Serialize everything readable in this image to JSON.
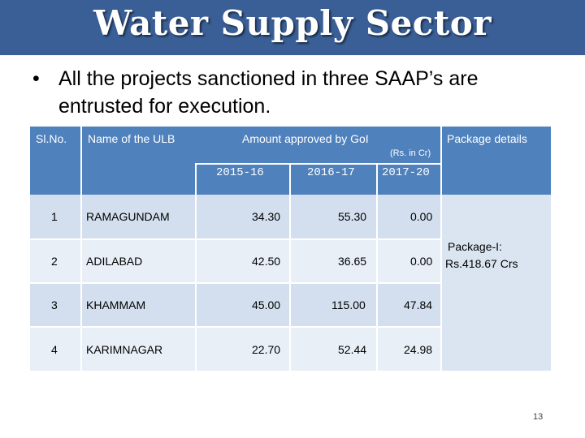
{
  "slide": {
    "title": "Water Supply Sector",
    "bullet": "All the projects sanctioned in three SAAP’s are entrusted for execution.",
    "page_number": "13"
  },
  "table": {
    "headers": {
      "sl_no": "Sl.No.",
      "name": "Name of the ULB",
      "amount": "Amount approved by GoI",
      "units": "(Rs. in Cr)",
      "package": "Package details"
    },
    "years": [
      "2015-16",
      "2016-17",
      "2017-20"
    ],
    "rows": [
      {
        "sl": "1",
        "name": "RAMAGUNDAM",
        "v1": "34.30",
        "v2": "55.30",
        "v3": "0.00"
      },
      {
        "sl": "2",
        "name": "ADILABAD",
        "v1": "42.50",
        "v2": "36.65",
        "v3": "0.00"
      },
      {
        "sl": "3",
        "name": "KHAMMAM",
        "v1": "45.00",
        "v2": "115.00",
        "v3": "47.84"
      },
      {
        "sl": "4",
        "name": "KARIMNAGAR",
        "v1": "22.70",
        "v2": "52.44",
        "v3": "24.98"
      }
    ],
    "package_details": {
      "line1": "Package-I:",
      "line2": "Rs.418.67 Crs"
    }
  }
}
